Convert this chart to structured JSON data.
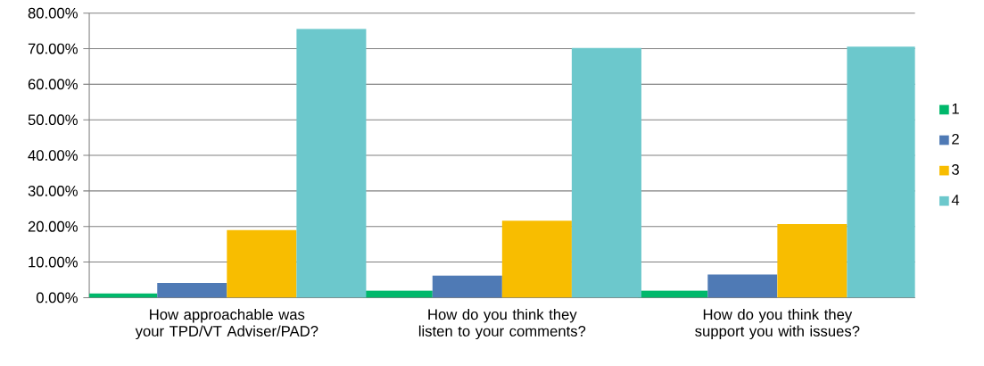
{
  "chart_data": {
    "type": "bar",
    "categories": [
      "How approachable was your TPD/VT Adviser/PAD?",
      "How do you think they listen to your comments?",
      "How do you think they support you with issues?"
    ],
    "series": [
      {
        "name": "1",
        "color": "#00b86b",
        "values": [
          1.2,
          2.0,
          2.0
        ]
      },
      {
        "name": "2",
        "color": "#4f7ab5",
        "values": [
          4.1,
          6.2,
          6.5
        ]
      },
      {
        "name": "3",
        "color": "#f8bd00",
        "values": [
          19.0,
          21.6,
          20.7
        ]
      },
      {
        "name": "4",
        "color": "#6cc8cc",
        "values": [
          75.6,
          70.2,
          70.6
        ]
      }
    ],
    "ylim": [
      0,
      80
    ],
    "yticks": [
      {
        "value": 0,
        "label": "0.00%"
      },
      {
        "value": 10,
        "label": "10.00%"
      },
      {
        "value": 20,
        "label": "20.00%"
      },
      {
        "value": 30,
        "label": "30.00%"
      },
      {
        "value": 40,
        "label": "40.00%"
      },
      {
        "value": 50,
        "label": "50.00%"
      },
      {
        "value": 60,
        "label": "60.00%"
      },
      {
        "value": 70,
        "label": "70.00%"
      },
      {
        "value": 80,
        "label": "80.00%"
      }
    ],
    "grid": "y",
    "legend": "right"
  }
}
